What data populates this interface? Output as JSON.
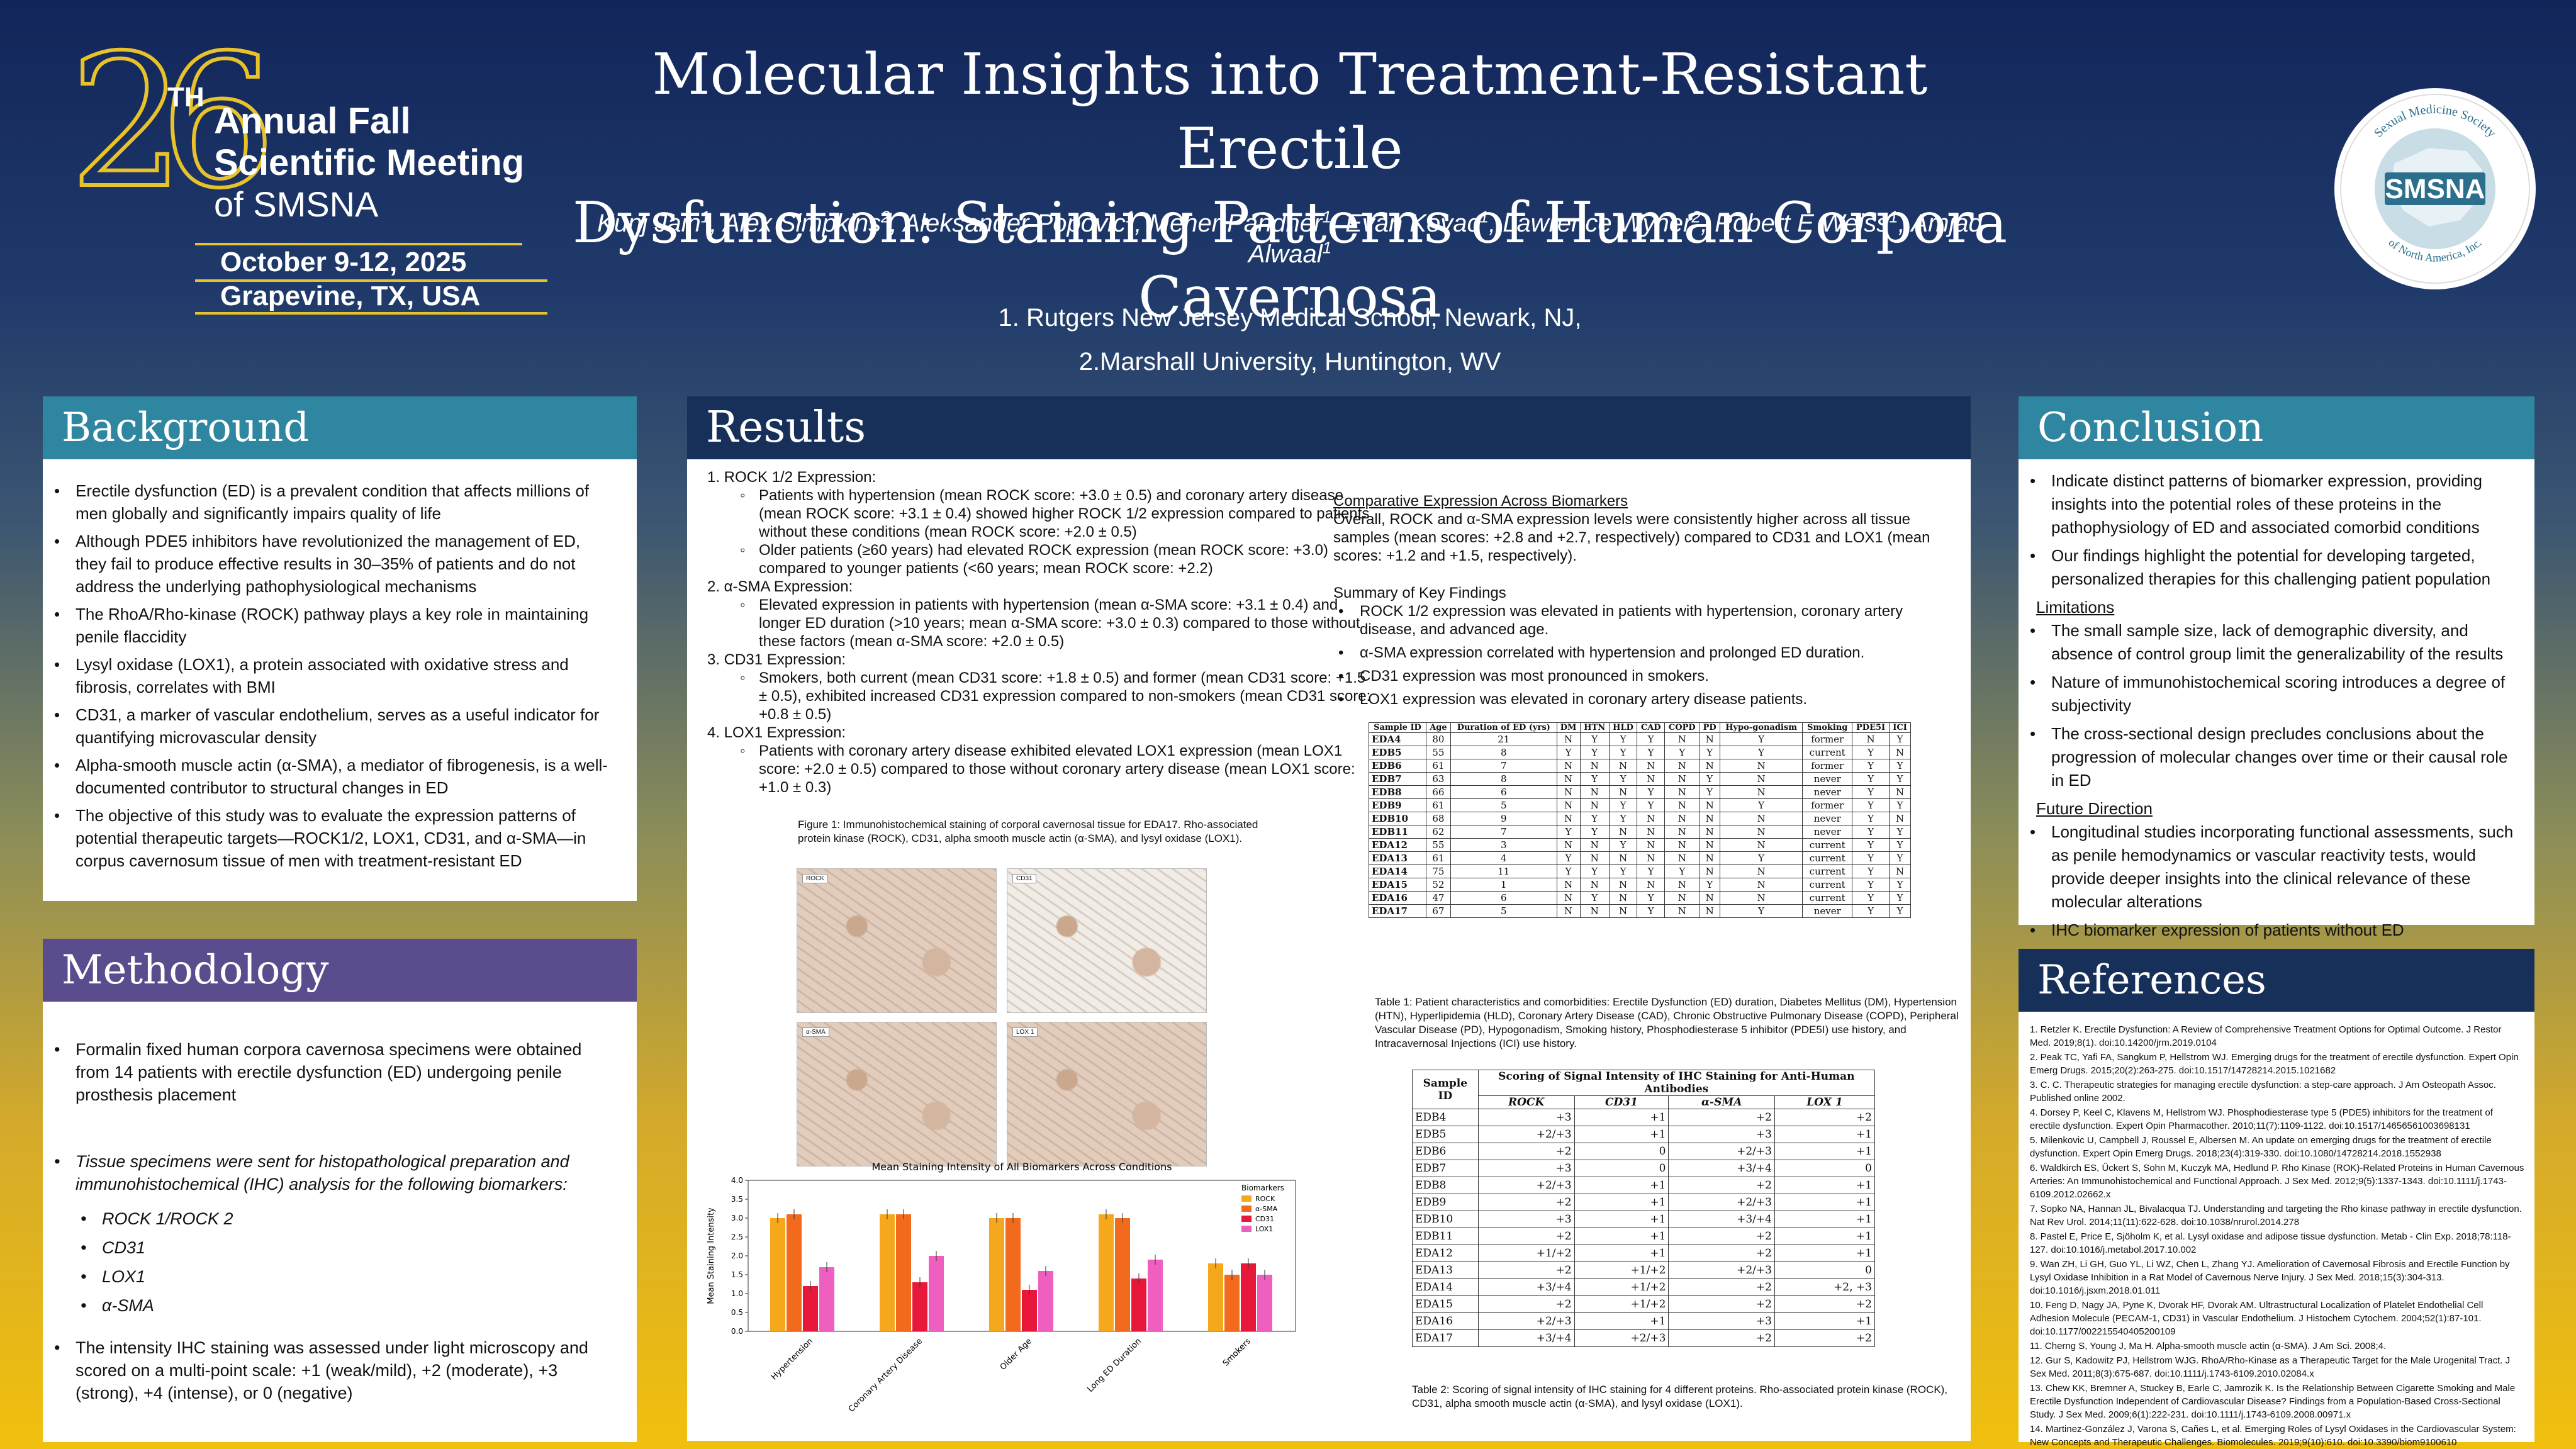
{
  "logo": {
    "number": "26",
    "th": "TH",
    "line1": "Annual Fall",
    "line2": "Scientific Meeting",
    "line3": "of SMSNA",
    "date": "October 9-12, 2025",
    "place": "Grapevine, TX, USA"
  },
  "title": [
    "Molecular Insights into Treatment-Resistant Erectile",
    "Dysfunction: Staining Patterns of Human Corpora Cavernosa"
  ],
  "authors": [
    {
      "name": "Kunj Jain",
      "sup": "1"
    },
    {
      "name": "Alex Simpkins",
      "sup": "2"
    },
    {
      "name": "Aleksander Popovic",
      "sup": "1"
    },
    {
      "name": "Meher Pandher",
      "sup": "1"
    },
    {
      "name": "Evan Kovac",
      "sup": "1"
    },
    {
      "name": "Lawrence Wyner",
      "sup": "2"
    },
    {
      "name": "Robert E Weiss",
      "sup": "1"
    },
    {
      "name": "Amjad Alwaal",
      "sup": "1"
    }
  ],
  "affiliations": [
    "1. Rutgers New Jersey Medical School, Newark, NJ,",
    "2.Marshall University, Huntington, WV"
  ],
  "seal": {
    "top": "Sexual Medicine Society",
    "name": "SMSNA",
    "bottom": "of North America, Inc."
  },
  "background": {
    "heading": "Background",
    "items": [
      "Erectile dysfunction (ED) is a prevalent condition that affects millions of men globally and significantly impairs quality of life",
      "Although PDE5 inhibitors have revolutionized the management of ED, they fail to produce effective results in 30–35% of patients and do not address the underlying pathophysiological mechanisms",
      "The RhoA/Rho-kinase (ROCK) pathway plays a key role in maintaining penile flaccidity",
      "Lysyl oxidase (LOX1), a protein associated with oxidative stress and fibrosis, correlates with BMI",
      "CD31, a marker of vascular endothelium, serves as a useful indicator for quantifying microvascular density",
      "Alpha-smooth muscle actin (α-SMA), a mediator of fibrogenesis, is a well-documented contributor to structural changes in ED",
      "The objective of this study was to evaluate the expression patterns of potential therapeutic targets—ROCK1/2, LOX1, CD31, and α-SMA—in corpus cavernosum tissue of men with treatment-resistant ED"
    ]
  },
  "methodology": {
    "heading": "Methodology",
    "item1": "Formalin fixed human corpora cavernosa specimens were obtained from 14 patients with erectile dysfunction (ED) undergoing penile prosthesis placement",
    "item2": "Tissue specimens were sent for histopathological preparation and immunohistochemical (IHC) analysis for the following biomarkers:",
    "markers": [
      "ROCK 1/ROCK 2",
      "CD31",
      "LOX1",
      "α-SMA"
    ],
    "item3": "The intensity IHC staining was assessed under light microscopy and scored on a multi-point scale: +1 (weak/mild), +2 (moderate), +3 (strong), +4 (intense), or 0 (negative)"
  },
  "results": {
    "heading": "Results",
    "sections": [
      {
        "title": "1.  ROCK 1/2 Expression:",
        "items": [
          "Patients with hypertension (mean ROCK score: +3.0 ± 0.5) and coronary artery disease (mean ROCK score: +3.1 ± 0.4) showed higher ROCK 1/2 expression compared to patients without these conditions (mean ROCK score: +2.0 ± 0.5)",
          "Older patients (≥60 years) had elevated ROCK expression (mean ROCK score: +3.0) compared to younger patients (<60 years; mean ROCK score: +2.2)"
        ]
      },
      {
        "title": "2.  α-SMA Expression:",
        "items": [
          "Elevated expression in patients with hypertension (mean α-SMA score: +3.1 ± 0.4) and longer ED duration (>10 years; mean α-SMA score: +3.0 ± 0.3) compared to those without these factors (mean α-SMA score: +2.0 ± 0.5)"
        ]
      },
      {
        "title": "3.  CD31 Expression:",
        "items": [
          "Smokers, both current (mean CD31 score: +1.8 ± 0.5) and former (mean CD31 score: +1.5 ± 0.5), exhibited increased CD31 expression compared to non-smokers (mean CD31 score: +0.8 ± 0.5)"
        ]
      },
      {
        "title": "4.  LOX1 Expression:",
        "items": [
          "Patients with coronary artery disease exhibited elevated LOX1 expression (mean LOX1 score: +2.0 ± 0.5) compared to those without coronary artery disease (mean LOX1 score: +1.0 ± 0.3)"
        ]
      }
    ],
    "fig1_caption": "Figure 1: Immunohistochemical staining of corporal cavernosal tissue for EDA17. Rho-associated protein kinase (ROCK), CD31, alpha smooth muscle actin (α-SMA), and lysyl oxidase (LOX1).",
    "micro_labels": [
      "ROCK",
      "CD31",
      "α-SMA",
      "LOX 1"
    ],
    "comparative_title": "Comparative Expression Across Biomarkers",
    "comparative_text": "Overall, ROCK and α-SMA expression levels were consistently higher across all tissue samples (mean scores: +2.8 and +2.7, respectively) compared to CD31 and LOX1 (mean scores: +1.2 and +1.5, respectively).",
    "summary_title": "Summary of Key Findings",
    "summary_items": [
      "ROCK 1/2 expression was elevated in patients with hypertension, coronary artery disease, and advanced age.",
      "α-SMA expression correlated with hypertension and prolonged ED duration.",
      "CD31 expression was most pronounced in smokers.",
      "LOX1 expression was elevated in coronary artery disease patients."
    ],
    "table1_caption": "Table 1: Patient characteristics and comorbidities: Erectile Dysfunction (ED) duration, Diabetes Mellitus (DM), Hypertension (HTN), Hyperlipidemia (HLD), Coronary Artery Disease (CAD), Chronic Obstructive Pulmonary Disease (COPD), Peripheral Vascular Disease (PD), Hypogonadism, Smoking history, Phosphodiesterase 5 inhibitor (PDE5I) use history, and Intracavernosal Injections (ICI) use history.",
    "table2_caption": "Table 2: Scoring of signal intensity of IHC staining for 4 different proteins. Rho-associated protein kinase (ROCK), CD31, alpha smooth muscle actin (α-SMA), and lysyl oxidase (LOX1)."
  },
  "table1": {
    "headers": [
      "Sample ID",
      "Age",
      "Duration of ED (yrs)",
      "DM",
      "HTN",
      "HLD",
      "CAD",
      "COPD",
      "PD",
      "Hypo-gonadism",
      "Smoking",
      "PDE5I",
      "ICI"
    ],
    "rows": [
      [
        "EDA4",
        "80",
        "21",
        "N",
        "Y",
        "Y",
        "Y",
        "N",
        "N",
        "Y",
        "former",
        "N",
        "Y"
      ],
      [
        "EDB5",
        "55",
        "8",
        "Y",
        "Y",
        "Y",
        "Y",
        "Y",
        "Y",
        "Y",
        "current",
        "Y",
        "N"
      ],
      [
        "EDB6",
        "61",
        "7",
        "N",
        "N",
        "N",
        "N",
        "N",
        "N",
        "N",
        "former",
        "Y",
        "Y"
      ],
      [
        "EDB7",
        "63",
        "8",
        "N",
        "Y",
        "Y",
        "N",
        "N",
        "Y",
        "N",
        "never",
        "Y",
        "Y"
      ],
      [
        "EDB8",
        "66",
        "6",
        "N",
        "N",
        "N",
        "Y",
        "N",
        "Y",
        "N",
        "never",
        "Y",
        "N"
      ],
      [
        "EDB9",
        "61",
        "5",
        "N",
        "N",
        "Y",
        "Y",
        "N",
        "N",
        "Y",
        "former",
        "Y",
        "Y"
      ],
      [
        "EDB10",
        "68",
        "9",
        "N",
        "Y",
        "Y",
        "N",
        "N",
        "N",
        "N",
        "never",
        "Y",
        "N"
      ],
      [
        "EDB11",
        "62",
        "7",
        "Y",
        "Y",
        "N",
        "N",
        "N",
        "N",
        "N",
        "never",
        "Y",
        "Y"
      ],
      [
        "EDA12",
        "55",
        "3",
        "N",
        "N",
        "Y",
        "N",
        "N",
        "N",
        "N",
        "current",
        "Y",
        "Y"
      ],
      [
        "EDA13",
        "61",
        "4",
        "Y",
        "N",
        "N",
        "N",
        "N",
        "N",
        "Y",
        "current",
        "Y",
        "Y"
      ],
      [
        "EDA14",
        "75",
        "11",
        "Y",
        "Y",
        "Y",
        "Y",
        "Y",
        "N",
        "N",
        "current",
        "Y",
        "N"
      ],
      [
        "EDA15",
        "52",
        "1",
        "N",
        "N",
        "N",
        "N",
        "N",
        "Y",
        "N",
        "current",
        "Y",
        "Y"
      ],
      [
        "EDA16",
        "47",
        "6",
        "N",
        "Y",
        "N",
        "Y",
        "N",
        "N",
        "N",
        "current",
        "Y",
        "Y"
      ],
      [
        "EDA17",
        "67",
        "5",
        "N",
        "N",
        "N",
        "Y",
        "N",
        "N",
        "Y",
        "never",
        "Y",
        "Y"
      ]
    ]
  },
  "table2": {
    "sample_header": "Sample ID",
    "group_header": "Scoring of Signal Intensity of IHC Staining for Anti-Human Antibodies",
    "headers": [
      "ROCK",
      "CD31",
      "α-SMA",
      "LOX 1"
    ],
    "rows": [
      [
        "EDB4",
        "+3",
        "+1",
        "+2",
        "+2"
      ],
      [
        "EDB5",
        "+2/+3",
        "+1",
        "+3",
        "+1"
      ],
      [
        "EDB6",
        "+2",
        "0",
        "+2/+3",
        "+1"
      ],
      [
        "EDB7",
        "+3",
        "0",
        "+3/+4",
        "0"
      ],
      [
        "EDB8",
        "+2/+3",
        "+1",
        "+2",
        "+1"
      ],
      [
        "EDB9",
        "+2",
        "+1",
        "+2/+3",
        "+1"
      ],
      [
        "EDB10",
        "+3",
        "+1",
        "+3/+4",
        "+1"
      ],
      [
        "EDB11",
        "+2",
        "+1",
        "+2",
        "+1"
      ],
      [
        "EDA12",
        "+1/+2",
        "+1",
        "+2",
        "+1"
      ],
      [
        "EDA13",
        "+2",
        "+1/+2",
        "+2/+3",
        "0"
      ],
      [
        "EDA14",
        "+3/+4",
        "+1/+2",
        "+2",
        "+2, +3"
      ],
      [
        "EDA15",
        "+2",
        "+1/+2",
        "+2",
        "+2"
      ],
      [
        "EDA16",
        "+2/+3",
        "+1",
        "+3",
        "+1"
      ],
      [
        "EDA17",
        "+3/+4",
        "+2/+3",
        "+2",
        "+2"
      ]
    ]
  },
  "chart_data": {
    "type": "bar",
    "title": "Mean Staining Intensity of All Biomarkers Across Conditions",
    "xlabel": "",
    "ylabel": "Mean Staining Intensity",
    "ylim": [
      0,
      4
    ],
    "yticks": [
      "0.0",
      "0.5",
      "1.0",
      "1.5",
      "2.0",
      "2.5",
      "3.0",
      "3.5",
      "4.0"
    ],
    "legend_title": "Biomarkers",
    "legend_position": "top-right",
    "categories": [
      "Hypertension",
      "Coronary Artery Disease",
      "Older Age",
      "Long ED Duration",
      "Smokers"
    ],
    "series": [
      {
        "name": "ROCK",
        "color": "#f5a81c",
        "values": [
          3.0,
          3.1,
          3.0,
          3.1,
          1.8
        ]
      },
      {
        "name": "α-SMA",
        "color": "#f26b1d",
        "values": [
          3.1,
          3.1,
          3.0,
          3.0,
          1.5
        ]
      },
      {
        "name": "CD31",
        "color": "#e8183a",
        "values": [
          1.2,
          1.3,
          1.1,
          1.4,
          1.8
        ]
      },
      {
        "name": "LOX1",
        "color": "#ee5fbf",
        "values": [
          1.7,
          2.0,
          1.6,
          1.9,
          1.5
        ]
      }
    ]
  },
  "conclusion": {
    "heading": "Conclusion",
    "items": [
      "Indicate distinct patterns of biomarker expression, providing insights into the potential roles of these proteins in the pathophysiology of ED and associated comorbid conditions",
      "Our findings highlight the potential for developing targeted, personalized therapies for this challenging patient population"
    ],
    "limitations_title": "Limitations",
    "limitations": [
      "The small sample size, lack of demographic diversity, and absence of control group limit the generalizability of the results",
      "Nature of immunohistochemical scoring introduces a degree of subjectivity",
      "The cross-sectional design precludes conclusions about the progression of molecular changes over time or their causal role in ED"
    ],
    "future_title": "Future Direction",
    "future": [
      "Longitudinal studies incorporating functional assessments, such as penile hemodynamics or vascular reactivity tests, would provide deeper insights into the clinical relevance of these molecular alterations",
      "IHC biomarker expression of patients without ED"
    ]
  },
  "references": {
    "heading": "References",
    "items": [
      "1. Retzler K. Erectile Dysfunction: A Review of Comprehensive Treatment Options for Optimal Outcome. J Restor Med. 2019;8(1). doi:10.14200/jrm.2019.0104",
      "2. Peak TC, Yafi FA, Sangkum P, Hellstrom WJ. Emerging drugs for the treatment of erectile dysfunction. Expert Opin Emerg Drugs. 2015;20(2):263-275. doi:10.1517/14728214.2015.1021682",
      "3. C. C. Therapeutic strategies for managing erectile dysfunction: a step-care approach. J Am Osteopath Assoc. Published online 2002.",
      "4. Dorsey P, Keel C, Klavens M, Hellstrom WJ. Phosphodiesterase type 5 (PDE5) inhibitors for the treatment of erectile dysfunction. Expert Opin Pharmacother. 2010;11(7):1109-1122. doi:10.1517/14656561003698131",
      "5. Milenkovic U, Campbell J, Roussel E, Albersen M. An update on emerging drugs for the treatment of erectile dysfunction. Expert Opin Emerg Drugs. 2018;23(4):319-330. doi:10.1080/14728214.2018.1552938",
      "6. Waldkirch ES, Ückert S, Sohn M, Kuczyk MA, Hedlund P. Rho Kinase (ROK)-Related Proteins in Human Cavernous Arteries: An Immunohistochemical and Functional Approach. J Sex Med. 2012;9(5):1337-1343. doi:10.1111/j.1743-6109.2012.02662.x",
      "7. Sopko NA, Hannan JL, Bivalacqua TJ. Understanding and targeting the Rho kinase pathway in erectile dysfunction. Nat Rev Urol. 2014;11(11):622-628. doi:10.1038/nrurol.2014.278",
      "8. Pastel E, Price E, Sjöholm K, et al. Lysyl oxidase and adipose tissue dysfunction. Metab - Clin Exp. 2018;78:118-127. doi:10.1016/j.metabol.2017.10.002",
      "9. Wan ZH, Li GH, Guo YL, Li WZ, Chen L, Zhang YJ. Amelioration of Cavernosal Fibrosis and Erectile Function by Lysyl Oxidase Inhibition in a Rat Model of Cavernous Nerve Injury. J Sex Med. 2018;15(3):304-313. doi:10.1016/j.jsxm.2018.01.011",
      "10. Feng D, Nagy JA, Pyne K, Dvorak HF, Dvorak AM. Ultrastructural Localization of Platelet Endothelial Cell Adhesion Molecule (PECAM-1, CD31) in Vascular Endothelium. J Histochem Cytochem. 2004;52(1):87-101. doi:10.1177/002215540405200109",
      "11. Cherng S, Young J, Ma H. Alpha-smooth muscle actin (α-SMA). J Am Sci. 2008;4.",
      "12. Gur S, Kadowitz PJ, Hellstrom WJG. RhoA/Rho-Kinase as a Therapeutic Target for the Male Urogenital Tract. J Sex Med. 2011;8(3):675-687. doi:10.1111/j.1743-6109.2010.02084.x",
      "13. Chew KK, Bremner A, Stuckey B, Earle C, Jamrozik K. Is the Relationship Between Cigarette Smoking and Male Erectile Dysfunction Independent of Cardiovascular Disease? Findings from a Population-Based Cross-Sectional Study. J Sex Med. 2009;6(1):222-231. doi:10.1111/j.1743-6109.2008.00971.x",
      "14. Martinez-González J, Varona S, Cañes L, et al. Emerging Roles of Lysyl Oxidases in the Cardiovascular System: New Concepts and Therapeutic Challenges. Biomolecules. 2019;9(10):610. doi:10.3390/biom9100610"
    ]
  }
}
